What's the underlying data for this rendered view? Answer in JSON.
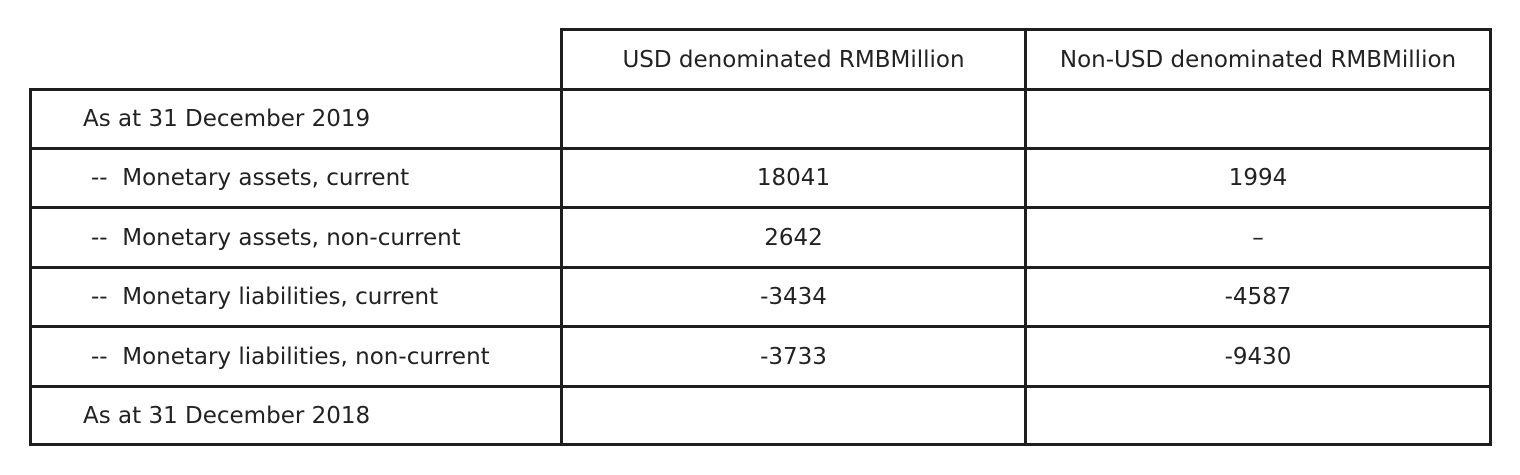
{
  "table": {
    "headers": {
      "usd": "USD denominated RMBMillion",
      "non_usd": "Non-USD denominated RMBMillion"
    },
    "rows": [
      {
        "label": "As at 31 December 2019",
        "usd": "",
        "non_usd": ""
      },
      {
        "label": "--  Monetary assets, current",
        "usd": "18041",
        "non_usd": "1994"
      },
      {
        "label": "--  Monetary assets, non-current",
        "usd": "2642",
        "non_usd": "–"
      },
      {
        "label": "--  Monetary liabilities, current",
        "usd": "-3434",
        "non_usd": "-4587"
      },
      {
        "label": "--  Monetary liabilities, non-current",
        "usd": "-3733",
        "non_usd": "-9430"
      },
      {
        "label": "As at 31 December 2018",
        "usd": "",
        "non_usd": ""
      }
    ]
  }
}
